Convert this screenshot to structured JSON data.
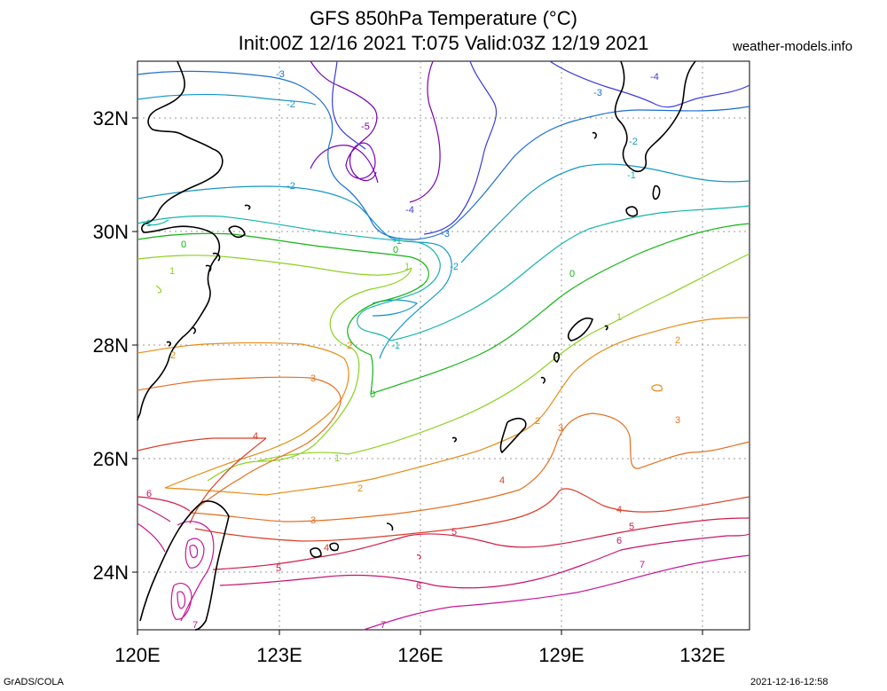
{
  "title_line1": "GFS 850hPa Temperature (°C)",
  "title_line2": "Init:00Z 12/16 2021 T:075 Valid:03Z 12/19 2021",
  "credit": "weather-models.info",
  "footer_left": "GrADS/COLA",
  "footer_right": "2021-12-16-12:58",
  "axes": {
    "lon_ticks": [
      "120E",
      "123E",
      "126E",
      "129E",
      "132E"
    ],
    "lat_ticks": [
      "32N",
      "30N",
      "28N",
      "26N",
      "24N"
    ]
  },
  "contour_colors": {
    "-5": "#7a00b4",
    "-4": "#3c3cdc",
    "-3": "#1e6ed2",
    "-2": "#1496c8",
    "-1": "#14b4aa",
    "0": "#14b414",
    "1": "#8cd21e",
    "2": "#e68c14",
    "3": "#e66e1e",
    "4": "#dc3c28",
    "5": "#d21e46",
    "6": "#c8146e",
    "7": "#c81496"
  },
  "contour_labels": [
    "-5",
    "-4",
    "-3",
    "-2",
    "-1",
    "0",
    "1",
    "2",
    "3",
    "4",
    "5",
    "6",
    "7"
  ]
}
